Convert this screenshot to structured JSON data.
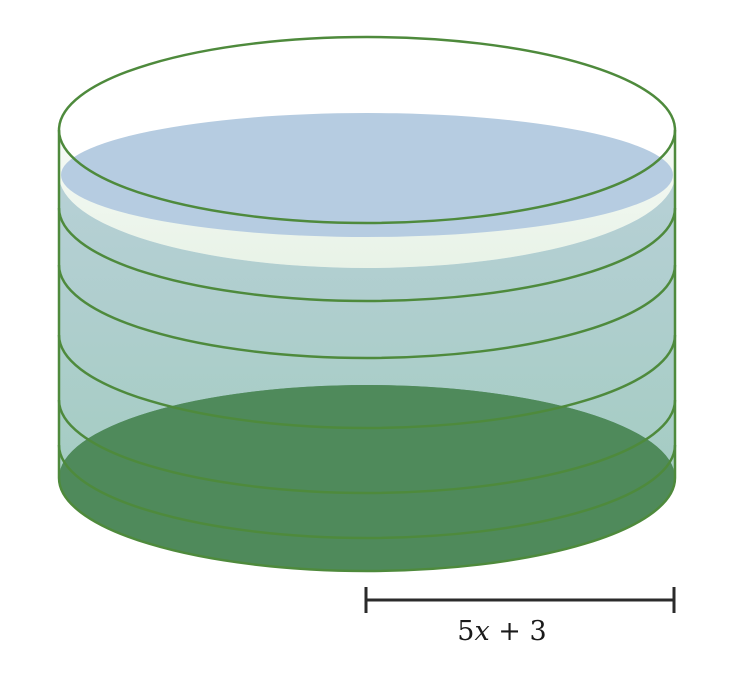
{
  "figure": {
    "radius_label": {
      "coefficient": "5",
      "variable": "x",
      "rest": " + 3"
    },
    "colors": {
      "outline": "#4e8a3c",
      "water_top": "#b6cce1",
      "water_body": "#a8cec6",
      "base": "#4f8a5b",
      "dimension_line": "#2b2b2b"
    }
  }
}
